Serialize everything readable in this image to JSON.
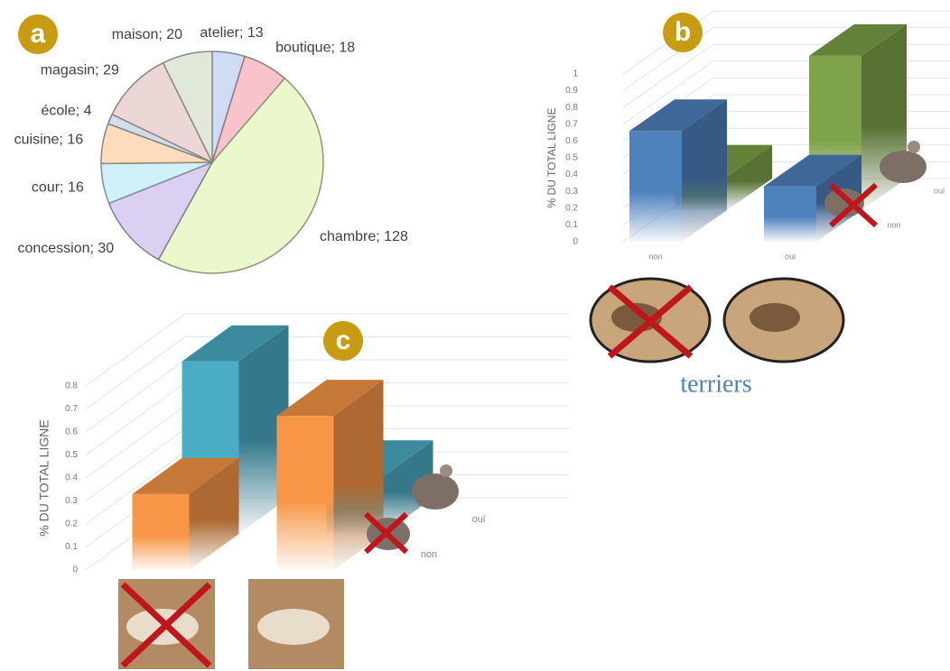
{
  "chart_data": [
    {
      "type": "pie",
      "panel": "a",
      "values": [
        13,
        18,
        128,
        30,
        16,
        16,
        4,
        29,
        20
      ],
      "value_labels": [
        "atelier; 13",
        "boutique; 18",
        "chambre; 128",
        "concession; 30",
        "cour; 16",
        "cuisine; 16",
        "école; 4",
        "magasin; 29",
        "maison; 20"
      ],
      "colors": [
        "#cfdcf6",
        "#f9c3cb",
        "#eaf8cc",
        "#dbd0f1",
        "#d0f1f9",
        "#fcdcbc",
        "#d3dde9",
        "#ecd7d7",
        "#e0e8da"
      ]
    },
    {
      "type": "bar3d",
      "panel": "b",
      "ylabel": "% DU TOTAL LIGNE",
      "xlabel": "terriers",
      "categories": [
        "non",
        "oui"
      ],
      "series": [
        {
          "name": "non",
          "color": "#4f81bd",
          "values": [
            0.66,
            0.33
          ]
        },
        {
          "name": "oui",
          "color": "#7ea34a",
          "values": [
            0.2,
            0.92
          ]
        }
      ],
      "ylim": [
        0,
        1
      ],
      "yticks": [
        0,
        0.1,
        0.2,
        0.3,
        0.4,
        0.5,
        0.6,
        0.7,
        0.8,
        0.9,
        1
      ]
    },
    {
      "type": "bar3d",
      "panel": "c",
      "ylabel": "% DU TOTAL LIGNE",
      "categories": [
        "non",
        "oui"
      ],
      "series": [
        {
          "name": "non",
          "color": "#f79646",
          "values": [
            0.33,
            0.67
          ]
        },
        {
          "name": "oui",
          "color": "#4bacc6",
          "values": [
            0.75,
            0.25
          ]
        }
      ],
      "ylim": [
        0,
        0.8
      ],
      "yticks": [
        0,
        0.1,
        0.2,
        0.3,
        0.4,
        0.5,
        0.6,
        0.7,
        0.8
      ]
    }
  ]
}
